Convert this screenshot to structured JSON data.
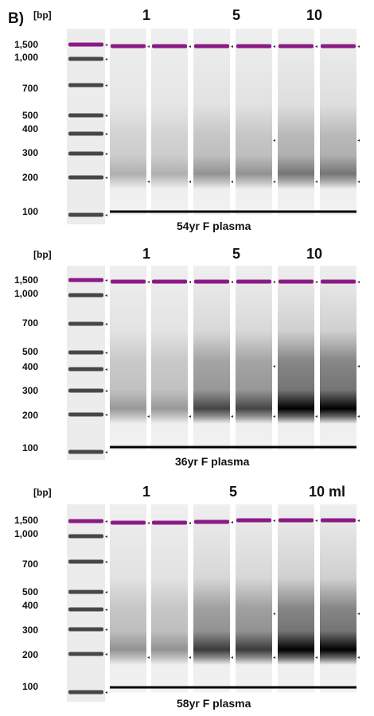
{
  "figure_label": "B)",
  "unit_label": "[bp]",
  "ladder_labels": [
    "1,500",
    "1,000",
    "700",
    "500",
    "400",
    "300",
    "200",
    "100"
  ],
  "colors": {
    "marker": "#8b1a86",
    "band": "#101010",
    "lane": "#f4f4f4",
    "ladder_bg": "#dcdcdc",
    "baseline": "#000000"
  },
  "panels": [
    {
      "volume_labels": [
        "1",
        "5",
        "10"
      ],
      "sample": "54yr F plasma",
      "lanes": [
        {
          "intensity": 0.1,
          "marker_shift": 0
        },
        {
          "intensity": 0.1,
          "marker_shift": 0
        },
        {
          "intensity": 0.25,
          "marker_shift": 0
        },
        {
          "intensity": 0.25,
          "marker_shift": 0
        },
        {
          "intensity": 0.4,
          "marker_shift": 0
        },
        {
          "intensity": 0.4,
          "marker_shift": 0
        }
      ]
    },
    {
      "volume_labels": [
        "1",
        "5",
        "10"
      ],
      "sample": "36yr F plasma",
      "lanes": [
        {
          "intensity": 0.22,
          "marker_shift": 0
        },
        {
          "intensity": 0.22,
          "marker_shift": 0
        },
        {
          "intensity": 0.65,
          "marker_shift": 0
        },
        {
          "intensity": 0.65,
          "marker_shift": 0
        },
        {
          "intensity": 1.0,
          "marker_shift": 0
        },
        {
          "intensity": 1.0,
          "marker_shift": 0
        }
      ]
    },
    {
      "volume_labels": [
        "1",
        "5",
        "10 ml"
      ],
      "sample": "58yr F plasma",
      "lanes": [
        {
          "intensity": 0.25,
          "marker_shift": 0
        },
        {
          "intensity": 0.25,
          "marker_shift": 0
        },
        {
          "intensity": 0.7,
          "marker_shift": -1
        },
        {
          "intensity": 0.7,
          "marker_shift": -3
        },
        {
          "intensity": 1.0,
          "marker_shift": -3
        },
        {
          "intensity": 1.0,
          "marker_shift": -3
        }
      ]
    }
  ]
}
